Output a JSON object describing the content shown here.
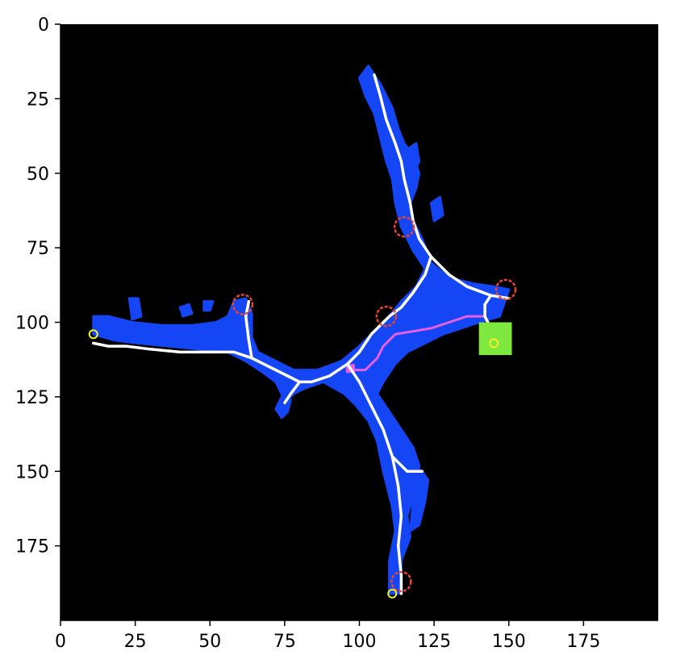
{
  "chart_data": {
    "type": "heatmap",
    "description_role": "segmentation mask image plot with skeleton overlay",
    "xlim": [
      0,
      200
    ],
    "ylim": [
      200,
      0
    ],
    "y_axis_inverted": true,
    "xticks": [
      0,
      25,
      50,
      75,
      100,
      125,
      150,
      175
    ],
    "yticks": [
      0,
      25,
      50,
      75,
      100,
      125,
      150,
      175
    ],
    "xtick_labels": [
      "0",
      "25",
      "50",
      "75",
      "100",
      "125",
      "150",
      "175"
    ],
    "ytick_labels": [
      "0",
      "25",
      "50",
      "75",
      "100",
      "125",
      "150",
      "175"
    ],
    "title": "",
    "xlabel": "",
    "ylabel": "",
    "colors": {
      "background": "#000000",
      "mask": "#1446f5",
      "skeleton": "#ffffff",
      "endpoint_marker": "#e8452c",
      "path": "#e55fe0",
      "endpoint_tip": "#f5f02a",
      "roi_box": "#7ee83e"
    },
    "regions": {
      "mask": [
        [
          [
            105,
            17
          ],
          [
            107,
            20
          ],
          [
            109,
            24
          ],
          [
            111,
            28
          ],
          [
            113,
            35
          ],
          [
            115,
            40
          ],
          [
            118,
            44
          ],
          [
            120,
            50
          ],
          [
            119,
            55
          ],
          [
            117,
            60
          ],
          [
            118,
            66
          ],
          [
            121,
            72
          ],
          [
            124,
            80
          ],
          [
            130,
            85
          ],
          [
            138,
            87
          ],
          [
            145,
            88
          ],
          [
            150,
            89
          ],
          [
            148,
            95
          ],
          [
            147,
            98
          ],
          [
            140,
            100
          ],
          [
            134,
            102
          ],
          [
            128,
            104
          ],
          [
            124,
            106
          ],
          [
            120,
            108
          ],
          [
            116,
            110
          ],
          [
            112,
            114
          ],
          [
            108,
            120
          ],
          [
            106,
            124
          ],
          [
            110,
            130
          ],
          [
            114,
            136
          ],
          [
            118,
            142
          ],
          [
            120,
            148
          ],
          [
            118,
            158
          ],
          [
            116,
            165
          ],
          [
            117,
            172
          ],
          [
            114,
            180
          ],
          [
            114,
            191
          ],
          [
            110,
            191
          ],
          [
            110,
            180
          ],
          [
            112,
            170
          ],
          [
            111,
            162
          ],
          [
            108,
            150
          ],
          [
            106,
            140
          ],
          [
            103,
            133
          ],
          [
            99,
            128
          ],
          [
            95,
            124
          ],
          [
            88,
            120
          ],
          [
            82,
            122
          ],
          [
            78,
            124
          ],
          [
            75,
            127
          ],
          [
            74,
            124
          ],
          [
            72,
            120
          ],
          [
            68,
            117
          ],
          [
            62,
            113
          ],
          [
            56,
            110
          ],
          [
            46,
            109
          ],
          [
            36,
            108
          ],
          [
            26,
            107
          ],
          [
            18,
            106
          ],
          [
            11,
            104
          ],
          [
            11,
            98
          ],
          [
            16,
            98
          ],
          [
            24,
            100
          ],
          [
            34,
            101
          ],
          [
            44,
            101
          ],
          [
            52,
            100
          ],
          [
            56,
            98
          ],
          [
            58,
            93
          ],
          [
            62,
            92
          ],
          [
            64,
            97
          ],
          [
            64,
            105
          ],
          [
            66,
            110
          ],
          [
            72,
            113
          ],
          [
            78,
            116
          ],
          [
            86,
            116
          ],
          [
            94,
            113
          ],
          [
            100,
            108
          ],
          [
            106,
            102
          ],
          [
            110,
            98
          ],
          [
            114,
            93
          ],
          [
            119,
            88
          ],
          [
            122,
            82
          ],
          [
            118,
            76
          ],
          [
            114,
            68
          ],
          [
            112,
            60
          ],
          [
            111,
            52
          ],
          [
            109,
            46
          ],
          [
            107,
            38
          ],
          [
            105,
            30
          ],
          [
            102,
            24
          ],
          [
            100,
            18
          ],
          [
            103,
            14
          ]
        ],
        [
          [
            116,
            42
          ],
          [
            119,
            40
          ],
          [
            120,
            46
          ],
          [
            118,
            50
          ],
          [
            116,
            48
          ]
        ],
        [
          [
            124,
            60
          ],
          [
            127,
            58
          ],
          [
            128,
            64
          ],
          [
            125,
            66
          ]
        ],
        [
          [
            118,
            148
          ],
          [
            121,
            150
          ],
          [
            123,
            153
          ],
          [
            122,
            160
          ],
          [
            120,
            168
          ],
          [
            117,
            170
          ],
          [
            118,
            160
          ],
          [
            118,
            152
          ]
        ],
        [
          [
            74,
            125
          ],
          [
            77,
            126
          ],
          [
            76,
            130
          ],
          [
            74,
            132
          ],
          [
            72,
            129
          ]
        ],
        [
          [
            23,
            92
          ],
          [
            26,
            92
          ],
          [
            27,
            98
          ],
          [
            24,
            99
          ]
        ],
        [
          [
            40,
            95
          ],
          [
            43,
            94
          ],
          [
            44,
            97
          ],
          [
            41,
            98
          ]
        ],
        [
          [
            48,
            93
          ],
          [
            51,
            93
          ],
          [
            50,
            96
          ],
          [
            48,
            96
          ]
        ]
      ],
      "roi_box": [
        [
          140,
          100
        ],
        [
          151,
          100
        ],
        [
          151,
          111
        ],
        [
          140,
          111
        ]
      ]
    },
    "lines": {
      "skeleton": [
        [
          [
            105,
            17
          ],
          [
            107,
            24
          ],
          [
            109,
            32
          ],
          [
            112,
            40
          ],
          [
            114,
            46
          ],
          [
            115,
            52
          ],
          [
            117,
            60
          ],
          [
            118,
            66
          ],
          [
            120,
            72
          ],
          [
            124,
            78
          ],
          [
            130,
            84
          ],
          [
            136,
            88
          ],
          [
            144,
            91
          ],
          [
            150,
            92
          ]
        ],
        [
          [
            144,
            91
          ],
          [
            142,
            94
          ],
          [
            142,
            98
          ],
          [
            144,
            102
          ],
          [
            145,
            106
          ],
          [
            146,
            108
          ]
        ],
        [
          [
            124,
            78
          ],
          [
            122,
            84
          ],
          [
            118,
            90
          ],
          [
            114,
            95
          ],
          [
            110,
            98
          ],
          [
            104,
            104
          ],
          [
            100,
            110
          ],
          [
            96,
            114
          ],
          [
            90,
            118
          ],
          [
            84,
            120
          ],
          [
            80,
            120
          ],
          [
            76,
            118
          ],
          [
            70,
            115
          ],
          [
            64,
            112
          ],
          [
            58,
            110
          ],
          [
            50,
            110
          ],
          [
            40,
            110
          ],
          [
            30,
            109
          ],
          [
            22,
            108
          ],
          [
            16,
            108
          ],
          [
            11,
            107
          ]
        ],
        [
          [
            64,
            112
          ],
          [
            63,
            106
          ],
          [
            62,
            98
          ],
          [
            63,
            93
          ]
        ],
        [
          [
            80,
            120
          ],
          [
            77,
            124
          ],
          [
            75,
            127
          ]
        ],
        [
          [
            96,
            114
          ],
          [
            100,
            120
          ],
          [
            104,
            128
          ],
          [
            108,
            136
          ],
          [
            111,
            145
          ],
          [
            113,
            155
          ],
          [
            114,
            165
          ],
          [
            113,
            175
          ],
          [
            114,
            185
          ],
          [
            114,
            191
          ]
        ],
        [
          [
            111,
            145
          ],
          [
            116,
            150
          ],
          [
            121,
            150
          ]
        ]
      ],
      "path": [
        [
          [
            97,
            116
          ],
          [
            102,
            116
          ],
          [
            106,
            112
          ],
          [
            108,
            108
          ],
          [
            112,
            104
          ],
          [
            118,
            103
          ],
          [
            124,
            102
          ],
          [
            130,
            100
          ],
          [
            136,
            98
          ],
          [
            142,
            98
          ],
          [
            145,
            104
          ]
        ]
      ]
    },
    "points": {
      "endpoint_markers": [
        [
          115,
          68
        ],
        [
          109,
          98
        ],
        [
          61,
          94
        ],
        [
          149,
          89
        ],
        [
          114,
          187
        ]
      ],
      "endpoint_tips": [
        [
          11,
          104
        ],
        [
          145,
          107
        ],
        [
          111,
          191
        ]
      ]
    }
  }
}
